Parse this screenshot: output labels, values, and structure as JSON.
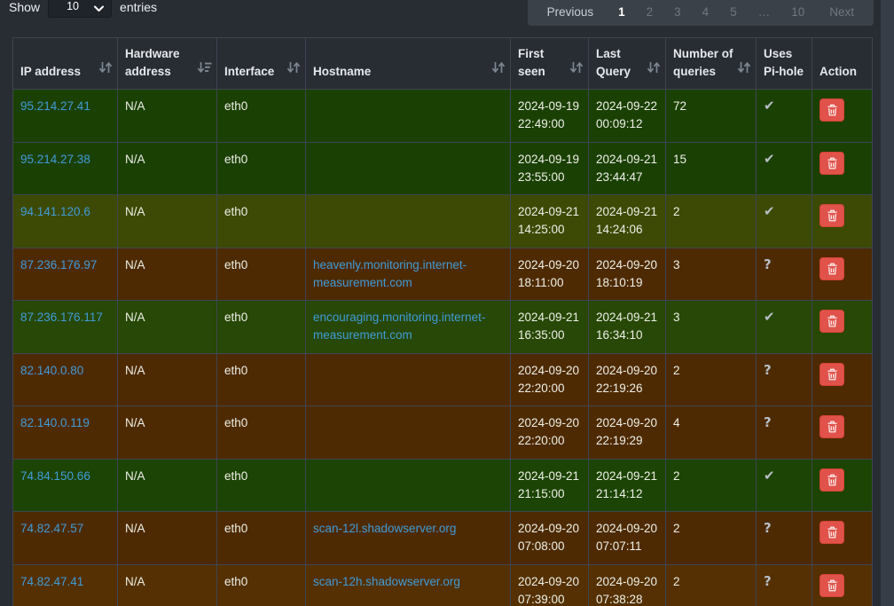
{
  "toolbar": {
    "show_label": "Show",
    "page_size": "10",
    "entries_label": "entries",
    "pagination": {
      "previous": "Previous",
      "pages": [
        "1",
        "2",
        "3",
        "4",
        "5",
        "…",
        "10"
      ],
      "active_page": "1",
      "next": "Next"
    }
  },
  "table": {
    "columns": [
      {
        "label": "IP address",
        "sort": "both"
      },
      {
        "label": "Hardware address",
        "sort": "desc"
      },
      {
        "label": "Interface",
        "sort": "both"
      },
      {
        "label": "Hostname",
        "sort": "both"
      },
      {
        "label": "First seen",
        "sort": "both"
      },
      {
        "label": "Last Query",
        "sort": "both"
      },
      {
        "label": "Number of queries",
        "sort": "both"
      },
      {
        "label": "Uses Pi-hole",
        "sort": "none"
      },
      {
        "label": "Action",
        "sort": "none"
      }
    ],
    "rows": [
      {
        "ip": "95.214.27.41",
        "hw": "N/A",
        "iface": "eth0",
        "hostname": "",
        "first_seen": "2024-09-19 22:49:00",
        "last_query": "2024-09-22 00:09:12",
        "queries": "72",
        "uses_pihole": "yes",
        "bg": "#1b4004"
      },
      {
        "ip": "95.214.27.38",
        "hw": "N/A",
        "iface": "eth0",
        "hostname": "",
        "first_seen": "2024-09-19 23:55:00",
        "last_query": "2024-09-21 23:44:47",
        "queries": "15",
        "uses_pihole": "yes",
        "bg": "#1b4004"
      },
      {
        "ip": "94.141.120.6",
        "hw": "N/A",
        "iface": "eth0",
        "hostname": "",
        "first_seen": "2024-09-21 14:25:00",
        "last_query": "2024-09-21 14:24:06",
        "queries": "2",
        "uses_pihole": "yes",
        "bg": "#3c4a05"
      },
      {
        "ip": "87.236.176.97",
        "hw": "N/A",
        "iface": "eth0",
        "hostname": "heavenly.monitoring.internet-measurement.com",
        "first_seen": "2024-09-20 18:11:00",
        "last_query": "2024-09-20 18:10:19",
        "queries": "3",
        "uses_pihole": "unknown",
        "bg": "#4e2a03"
      },
      {
        "ip": "87.236.176.117",
        "hw": "N/A",
        "iface": "eth0",
        "hostname": "encouraging.monitoring.internet-measurement.com",
        "first_seen": "2024-09-21 16:35:00",
        "last_query": "2024-09-21 16:34:10",
        "queries": "3",
        "uses_pihole": "yes",
        "bg": "#274806"
      },
      {
        "ip": "82.140.0.80",
        "hw": "N/A",
        "iface": "eth0",
        "hostname": "",
        "first_seen": "2024-09-20 22:20:00",
        "last_query": "2024-09-20 22:19:26",
        "queries": "2",
        "uses_pihole": "unknown",
        "bg": "#4e2a03"
      },
      {
        "ip": "82.140.0.119",
        "hw": "N/A",
        "iface": "eth0",
        "hostname": "",
        "first_seen": "2024-09-20 22:20:00",
        "last_query": "2024-09-20 22:19:29",
        "queries": "4",
        "uses_pihole": "unknown",
        "bg": "#4e2a03"
      },
      {
        "ip": "74.84.150.66",
        "hw": "N/A",
        "iface": "eth0",
        "hostname": "",
        "first_seen": "2024-09-21 21:15:00",
        "last_query": "2024-09-21 21:14:12",
        "queries": "2",
        "uses_pihole": "yes",
        "bg": "#1c4404"
      },
      {
        "ip": "74.82.47.57",
        "hw": "N/A",
        "iface": "eth0",
        "hostname": "scan-12l.shadowserver.org",
        "first_seen": "2024-09-20 07:08:00",
        "last_query": "2024-09-20 07:07:11",
        "queries": "2",
        "uses_pihole": "unknown",
        "bg": "#4e2a03"
      },
      {
        "ip": "74.82.47.41",
        "hw": "N/A",
        "iface": "eth0",
        "hostname": "scan-12h.shadowserver.org",
        "first_seen": "2024-09-20 07:39:00",
        "last_query": "2024-09-20 07:38:28",
        "queries": "2",
        "uses_pihole": "unknown",
        "bg": "#543003"
      }
    ]
  },
  "icons": {
    "uses_pihole_yes": "✔",
    "uses_pihole_unknown": "?"
  },
  "colors": {
    "link_blue": "#419bd7",
    "danger_button": "#e0524a",
    "row_uses_pihole_green": "#1b4004",
    "row_no_pihole_orange": "#4e2a03",
    "status_icon_gray": "#b8bfc5",
    "page_background": "#282c33"
  }
}
